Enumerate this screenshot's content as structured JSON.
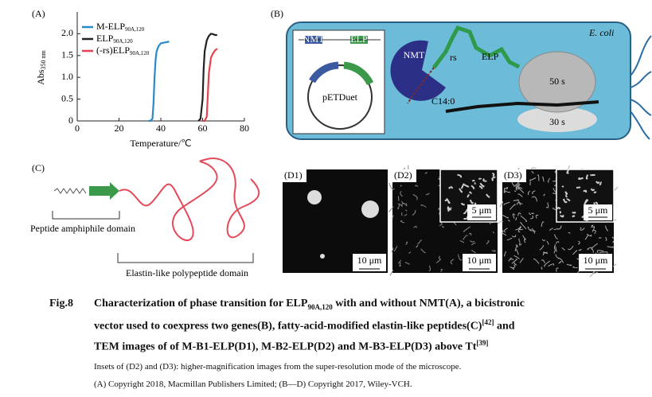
{
  "chart_data": {
    "type": "line",
    "panel": "(A)",
    "x_label": "Temperature/℃",
    "y_label": "Abs",
    "y_label_sub": "350 nm",
    "xlim": [
      0,
      80
    ],
    "xticks": [
      0,
      20,
      40,
      60,
      80
    ],
    "ylim": [
      0,
      2.5
    ],
    "yticks": [
      0,
      0.5,
      {
        "value": 1.0,
        "label": "1.0"
      },
      1.5,
      {
        "value": 2.0,
        "label": "2.0"
      }
    ],
    "legend": "upper left",
    "series": [
      {
        "name": "M-ELP",
        "subscript": "90A,120",
        "color": "#2a8ac7",
        "x": [
          34,
          35,
          36,
          36.5,
          37,
          37.5,
          38,
          39,
          40,
          42,
          44
        ],
        "values": [
          0,
          0,
          0.05,
          0.4,
          1.0,
          1.4,
          1.6,
          1.72,
          1.78,
          1.8,
          1.82
        ]
      },
      {
        "name": "ELP",
        "subscript": "90A,120",
        "color": "#222222",
        "x": [
          58,
          59,
          60,
          60.5,
          61,
          62,
          63,
          64,
          65,
          66,
          67
        ],
        "values": [
          0,
          0.05,
          0.5,
          1.2,
          1.6,
          1.85,
          1.95,
          2.0,
          1.99,
          1.97,
          1.97
        ]
      },
      {
        "name": "(-rs)ELP",
        "subscript": "90A,120",
        "color": "#e8434d",
        "x": [
          60,
          61,
          62,
          62.5,
          63,
          64,
          65,
          66,
          67
        ],
        "values": [
          0,
          0,
          0.1,
          0.6,
          1.1,
          1.45,
          1.55,
          1.62,
          1.66
        ]
      }
    ]
  },
  "panel_b": {
    "label": "(B)",
    "organism": "E. coli",
    "plasmid": "pETDuet",
    "gene1": "NMT",
    "gene2": "ELP",
    "enzyme": "NMT",
    "linker": "rs",
    "peptide": "ELP",
    "lipid": "C14:0",
    "state1": "50 s",
    "state2": "30 s"
  },
  "panel_c": {
    "label": "(C)",
    "domain1": "Peptide amphiphile domain",
    "domain2": "Elastin-like polypeptide domain"
  },
  "panel_d": [
    {
      "label": "(D1)",
      "scale": "10 μm"
    },
    {
      "label": "(D2)",
      "scale": "10 μm",
      "inset_scale": "5 μm"
    },
    {
      "label": "(D3)",
      "scale": "10 μm",
      "inset_scale": "5 μm"
    }
  ],
  "caption": {
    "label": "Fig.8",
    "line1": {
      "a": "Characterization of phase transition for ELP",
      "sub": "90A,120",
      "b": " with and without NMT(A), a bicistronic"
    },
    "line2": {
      "a": "vector used to coexpress two genes(B), fatty-acid-modified elastin-like peptides(C)",
      "sup": "[42]",
      "b": " and"
    },
    "line3": {
      "a": "TEM images of of M-B1-ELP(D1), M-B2-ELP(D2) and M-B3-ELP(D3) above Tt",
      "sup": "[39]"
    },
    "line4": "Insets of (D2) and (D3): higher-magnification images from the super-resolution mode of the microscope.",
    "line5": "(A) Copyright 2018, Macmillan Publishers Limited; (B—D) Copyright 2017, Wiley-VCH."
  }
}
